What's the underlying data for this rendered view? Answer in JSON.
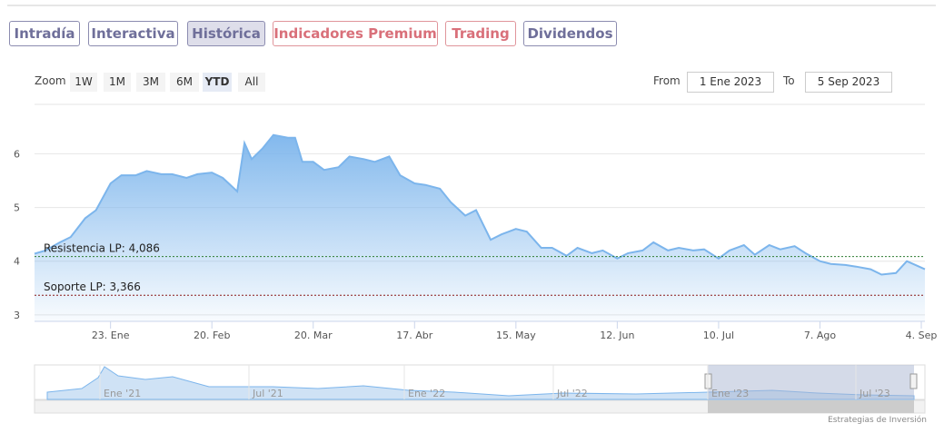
{
  "tabs": [
    "Intradía",
    "Interactiva",
    "Histórica",
    "Indicadores Premium",
    "Trading",
    "Dividendos"
  ],
  "zoom": {
    "label": "Zoom",
    "buttons": [
      "1W",
      "1M",
      "3M",
      "6M",
      "YTD",
      "All"
    ]
  },
  "range": {
    "from_label": "From",
    "from": "1 Ene 2023",
    "to_label": "To",
    "to": "5 Sep 2023"
  },
  "navigator": {
    "labels": [
      "Ene '21",
      "Jul '21",
      "Ene '22",
      "Jul '22",
      "Ene '23",
      "Jul '23"
    ]
  },
  "credit": "Estrategias de Inversión",
  "chart_data": {
    "type": "area",
    "color": "#7cb5ec",
    "x": [
      "2023-01-02",
      "2023-01-05",
      "2023-01-09",
      "2023-01-12",
      "2023-01-16",
      "2023-01-19",
      "2023-01-23",
      "2023-01-26",
      "2023-01-30",
      "2023-02-02",
      "2023-02-06",
      "2023-02-09",
      "2023-02-13",
      "2023-02-16",
      "2023-02-20",
      "2023-02-23",
      "2023-02-27",
      "2023-03-01",
      "2023-03-03",
      "2023-03-06",
      "2023-03-09",
      "2023-03-13",
      "2023-03-15",
      "2023-03-17",
      "2023-03-20",
      "2023-03-23",
      "2023-03-27",
      "2023-03-30",
      "2023-04-03",
      "2023-04-06",
      "2023-04-10",
      "2023-04-13",
      "2023-04-17",
      "2023-04-20",
      "2023-04-24",
      "2023-04-27",
      "2023-05-01",
      "2023-05-04",
      "2023-05-08",
      "2023-05-11",
      "2023-05-15",
      "2023-05-18",
      "2023-05-22",
      "2023-05-25",
      "2023-05-29",
      "2023-06-01",
      "2023-06-05",
      "2023-06-08",
      "2023-06-12",
      "2023-06-15",
      "2023-06-19",
      "2023-06-22",
      "2023-06-26",
      "2023-06-29",
      "2023-07-03",
      "2023-07-06",
      "2023-07-10",
      "2023-07-13",
      "2023-07-17",
      "2023-07-20",
      "2023-07-24",
      "2023-07-27",
      "2023-07-31",
      "2023-08-03",
      "2023-08-07",
      "2023-08-10",
      "2023-08-14",
      "2023-08-17",
      "2023-08-21",
      "2023-08-24",
      "2023-08-28",
      "2023-08-31",
      "2023-09-05"
    ],
    "values": [
      4.14,
      4.2,
      4.35,
      4.45,
      4.8,
      4.95,
      5.45,
      5.6,
      5.6,
      5.68,
      5.62,
      5.62,
      5.55,
      5.62,
      5.65,
      5.55,
      5.3,
      6.2,
      5.9,
      6.1,
      6.35,
      6.3,
      6.3,
      5.85,
      5.85,
      5.7,
      5.75,
      5.95,
      5.9,
      5.85,
      5.95,
      5.6,
      5.45,
      5.42,
      5.35,
      5.1,
      4.85,
      4.95,
      4.4,
      4.5,
      4.6,
      4.55,
      4.25,
      4.25,
      4.1,
      4.25,
      4.15,
      4.2,
      4.05,
      4.15,
      4.2,
      4.35,
      4.2,
      4.25,
      4.2,
      4.22,
      4.05,
      4.2,
      4.3,
      4.12,
      4.3,
      4.22,
      4.28,
      4.15,
      4.0,
      3.95,
      3.93,
      3.9,
      3.85,
      3.75,
      3.78,
      4.0,
      3.85
    ],
    "xlim": [
      "2023-01-02",
      "2023-09-05"
    ],
    "xticks": [
      {
        "value": "2023-01-23",
        "label": "23. Ene"
      },
      {
        "value": "2023-02-20",
        "label": "20. Feb"
      },
      {
        "value": "2023-03-20",
        "label": "20. Mar"
      },
      {
        "value": "2023-04-17",
        "label": "17. Abr"
      },
      {
        "value": "2023-05-15",
        "label": "15. May"
      },
      {
        "value": "2023-06-12",
        "label": "12. Jun"
      },
      {
        "value": "2023-07-10",
        "label": "10. Jul"
      },
      {
        "value": "2023-08-07",
        "label": "7. Ago"
      },
      {
        "value": "2023-09-04",
        "label": "4. Sep"
      }
    ],
    "ylim": [
      2.88,
      6.92
    ],
    "yticks": [
      3,
      4,
      5,
      6
    ],
    "grid": true,
    "plot_lines": [
      {
        "value": 4.086,
        "label": "Resistencia LP: 4,086",
        "color": "#2e7d32"
      },
      {
        "value": 3.366,
        "label": "Soporte LP: 3,366",
        "color": "#8b1a1a"
      }
    ]
  }
}
